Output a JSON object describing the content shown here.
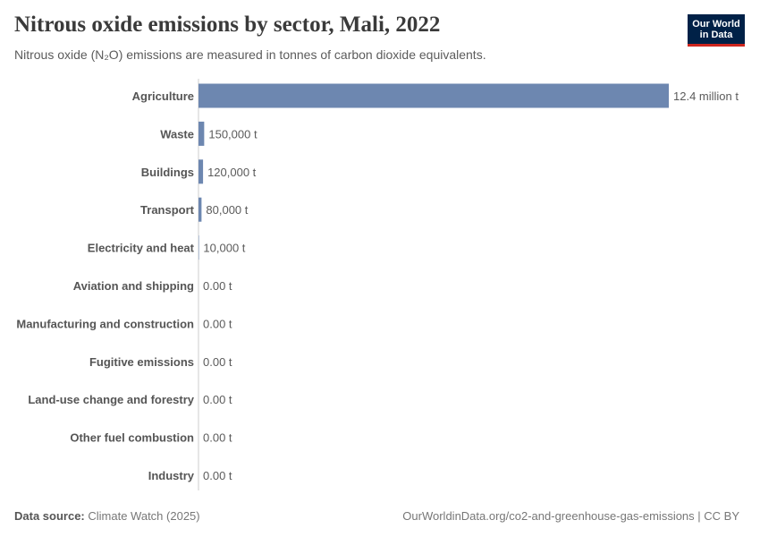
{
  "title": "Nitrous oxide emissions by sector, Mali, 2022",
  "subtitle": "Nitrous oxide (N₂O) emissions are measured in tonnes of carbon dioxide equivalents.",
  "logo": {
    "line1": "Our World",
    "line2": "in Data"
  },
  "footer": {
    "source_label": "Data source:",
    "source_text": "Climate Watch (2025)",
    "url_license": "OurWorldinData.org/co2-and-greenhouse-gas-emissions | CC BY"
  },
  "colors": {
    "bar": "#6d87b0",
    "axis": "#cccccc",
    "logo_bg": "#002147",
    "logo_accent": "#ce261e"
  },
  "chart_data": {
    "type": "bar",
    "orientation": "horizontal",
    "categories": [
      "Agriculture",
      "Waste",
      "Buildings",
      "Transport",
      "Electricity and heat",
      "Aviation and shipping",
      "Manufacturing and construction",
      "Fugitive emissions",
      "Land-use change and forestry",
      "Other fuel combustion",
      "Industry"
    ],
    "values": [
      12400000,
      150000,
      120000,
      80000,
      10000,
      0,
      0,
      0,
      0,
      0,
      0
    ],
    "value_labels": [
      "12.4 million t",
      "150,000 t",
      "120,000 t",
      "80,000 t",
      "10,000 t",
      "0.00 t",
      "0.00 t",
      "0.00 t",
      "0.00 t",
      "0.00 t",
      "0.00 t"
    ],
    "xlim": [
      0,
      12400000
    ],
    "grid": false,
    "legend": "none"
  }
}
